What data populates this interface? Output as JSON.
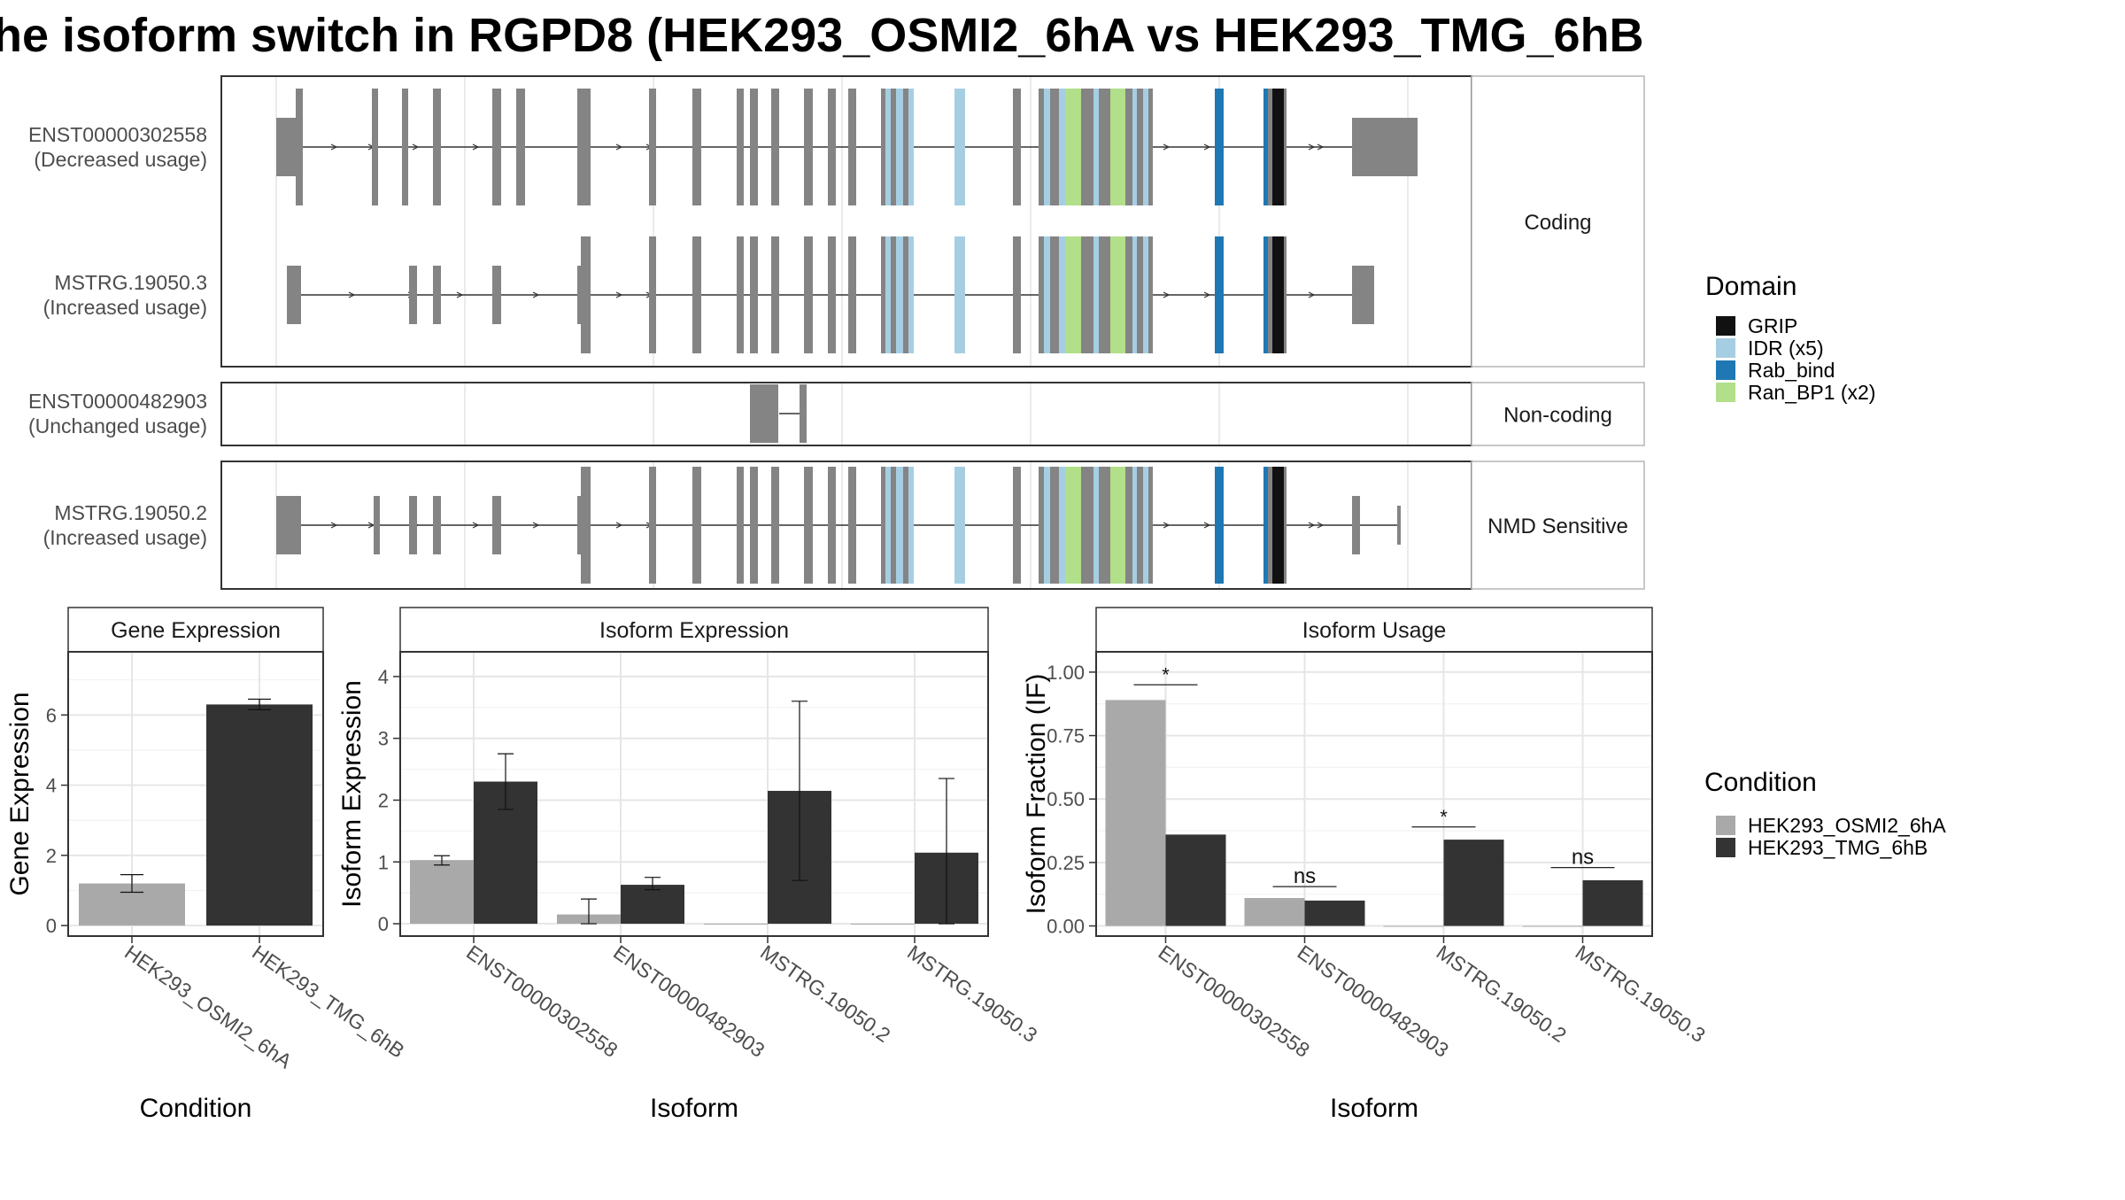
{
  "title": "he isoform switch in RGPD8 (HEK293_OSMI2_6hA vs HEK293_TMG_6hB",
  "structure": {
    "groups": [
      {
        "label": "Coding",
        "transcripts": [
          {
            "id": "ENST00000302558",
            "usage": "(Decreased usage)"
          },
          {
            "id": "MSTRG.19050.3",
            "usage": "(Increased usage)"
          }
        ]
      },
      {
        "label": "Non-coding",
        "transcripts": [
          {
            "id": "ENST00000482903",
            "usage": "(Unchanged usage)"
          }
        ]
      },
      {
        "label": "NMD Sensitive",
        "transcripts": [
          {
            "id": "MSTRG.19050.2",
            "usage": "(Increased usage)"
          }
        ]
      }
    ]
  },
  "legend_domain": {
    "title": "Domain",
    "items": [
      {
        "label": "GRIP",
        "color": "#111111"
      },
      {
        "label": "IDR (x5)",
        "color": "#a6cee3"
      },
      {
        "label": "Rab_bind",
        "color": "#1f78b4"
      },
      {
        "label": "Ran_BP1 (x2)",
        "color": "#b2df8a"
      }
    ]
  },
  "legend_condition": {
    "title": "Condition",
    "items": [
      {
        "label": "HEK293_OSMI2_6hA",
        "color": "#a9a9a9"
      },
      {
        "label": "HEK293_TMG_6hB",
        "color": "#333333"
      }
    ]
  },
  "chart_data": [
    {
      "type": "bar",
      "panel_title": "Gene Expression",
      "xlabel": "Condition",
      "ylabel": "Gene Expression",
      "ylim": [
        -0.3,
        7.8
      ],
      "yticks": [
        0,
        2,
        4,
        6
      ],
      "categories": [
        "HEK293_OSMI2_6hA",
        "HEK293_TMG_6hB"
      ],
      "values": [
        1.2,
        6.3
      ],
      "errors": [
        [
          0.95,
          1.45
        ],
        [
          6.15,
          6.45
        ]
      ]
    },
    {
      "type": "bar",
      "panel_title": "Isoform Expression",
      "xlabel": "Isoform",
      "ylabel": "Isoform Expression",
      "ylim": [
        -0.2,
        4.4
      ],
      "yticks": [
        0,
        1,
        2,
        3,
        4
      ],
      "categories": [
        "ENST00000302558",
        "ENST00000482903",
        "MSTRG.19050.2",
        "MSTRG.19050.3"
      ],
      "series": [
        {
          "values": [
            1.03,
            0.15,
            0.0,
            0.0
          ],
          "errors": [
            [
              0.95,
              1.1
            ],
            [
              0.0,
              0.4
            ],
            [
              0.0,
              0.0
            ],
            [
              0.0,
              0.0
            ]
          ]
        },
        {
          "values": [
            2.3,
            0.63,
            2.15,
            1.15
          ],
          "errors": [
            [
              1.85,
              2.75
            ],
            [
              0.55,
              0.75
            ],
            [
              0.7,
              3.6
            ],
            [
              0.0,
              2.35
            ]
          ]
        }
      ]
    },
    {
      "type": "bar",
      "panel_title": "Isoform Usage",
      "xlabel": "Isoform",
      "ylabel": "Isoform Fraction (IF)",
      "ylim": [
        -0.04,
        1.08
      ],
      "yticks": [
        "0.00",
        "0.25",
        "0.50",
        "0.75",
        "1.00"
      ],
      "categories": [
        "ENST00000302558",
        "ENST00000482903",
        "MSTRG.19050.2",
        "MSTRG.19050.3"
      ],
      "series": [
        {
          "values": [
            0.89,
            0.11,
            0.0,
            0.0
          ]
        },
        {
          "values": [
            0.36,
            0.1,
            0.34,
            0.18
          ]
        }
      ],
      "significance": [
        "*",
        "ns",
        "*",
        "ns"
      ],
      "significance_y": [
        0.95,
        0.155,
        0.39,
        0.23
      ]
    }
  ]
}
